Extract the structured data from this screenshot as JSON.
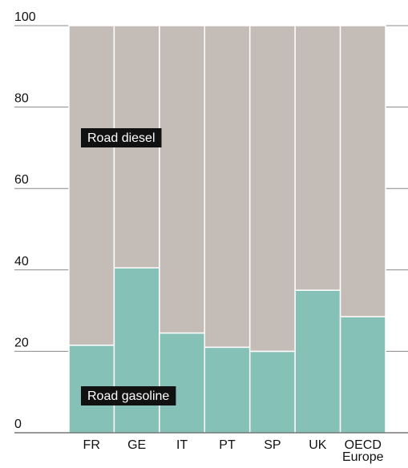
{
  "chart_data": {
    "type": "bar",
    "stacked": true,
    "normalized_percent": true,
    "categories": [
      "FR",
      "GE",
      "IT",
      "PT",
      "SP",
      "UK",
      "OECD Europe"
    ],
    "series": [
      {
        "name": "Road gasoline",
        "values": [
          21.5,
          40.5,
          24.5,
          21,
          20,
          35,
          28.5
        ],
        "color": "#85c1b7"
      },
      {
        "name": "Road diesel",
        "values": [
          78.5,
          59.5,
          75.5,
          79,
          80,
          65,
          71.5
        ],
        "color": "#c4bdb7"
      }
    ],
    "yticks": [
      "0",
      "20",
      "40",
      "60",
      "80",
      "100"
    ],
    "ylim": [
      0,
      100
    ],
    "title": "",
    "xlabel": "",
    "ylabel": "",
    "grid": "y-ticks outside plot only",
    "legend": "inline labels on plot"
  }
}
